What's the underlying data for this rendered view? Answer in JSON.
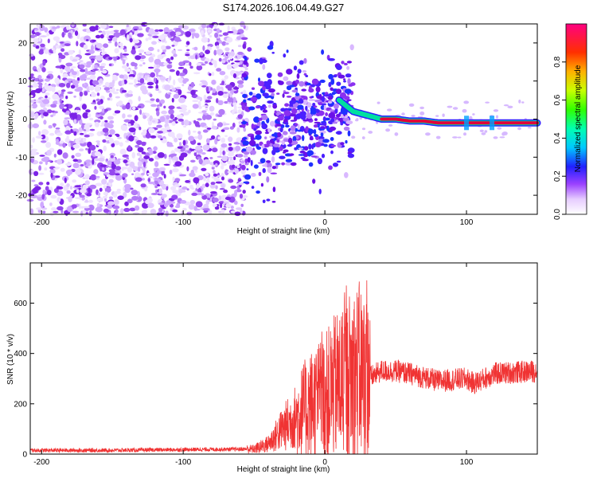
{
  "title": "S174.2026.106.04.49.G27",
  "colors": {
    "spectral_dot": "#7b22e6",
    "snr_line": "#f03333",
    "ridge_high": "#e0003a",
    "ridge_mid": "#00e0a0"
  },
  "chart_data": [
    {
      "type": "heatmap",
      "xlabel": "Height of straight line (km)",
      "ylabel": "Frequency (Hz)",
      "xlim": [
        -208,
        150
      ],
      "ylim": [
        -25,
        25
      ],
      "xticks": [
        -200,
        -100,
        0,
        100
      ],
      "xtick_labels": [
        "-200",
        "-100",
        "0",
        "100"
      ],
      "yticks": [
        -20,
        -10,
        0,
        10,
        20
      ],
      "ytick_labels": [
        "-20",
        "-10",
        "0",
        "10",
        "20"
      ],
      "ridge": {
        "x": [
          10,
          20,
          30,
          40,
          50,
          60,
          70,
          80,
          100,
          120,
          150
        ],
        "y": [
          5,
          2,
          1,
          0,
          0,
          -0.5,
          -0.5,
          -1,
          -1,
          -1,
          -1
        ]
      },
      "colorbar": {
        "label": "Normalized spectral amplitude",
        "ticks": [
          0.0,
          0.2,
          0.4,
          0.6,
          0.8
        ],
        "tick_labels": [
          "0.0",
          "0.2",
          "0.4",
          "0.6",
          "0.8"
        ],
        "range": [
          0,
          1
        ]
      }
    },
    {
      "type": "line",
      "xlabel": "Height of straight line (km)",
      "ylabel": "SNR (10 * v/v)",
      "xlim": [
        -208,
        150
      ],
      "ylim": [
        0,
        760
      ],
      "xticks": [
        -200,
        -100,
        0,
        100
      ],
      "xtick_labels": [
        "-200",
        "-100",
        "0",
        "100"
      ],
      "yticks": [
        0,
        200,
        400,
        600
      ],
      "ytick_labels": [
        "0",
        "200",
        "400",
        "600"
      ],
      "series": [
        {
          "name": "SNR",
          "x": [
            -208,
            -150,
            -100,
            -50,
            -40,
            -30,
            -20,
            -10,
            0,
            10,
            20,
            25,
            30,
            40,
            50,
            60,
            80,
            100,
            105,
            120,
            150
          ],
          "values": [
            15,
            15,
            18,
            20,
            40,
            100,
            150,
            200,
            230,
            280,
            320,
            330,
            300,
            330,
            330,
            320,
            290,
            300,
            280,
            320,
            330
          ]
        }
      ]
    }
  ]
}
